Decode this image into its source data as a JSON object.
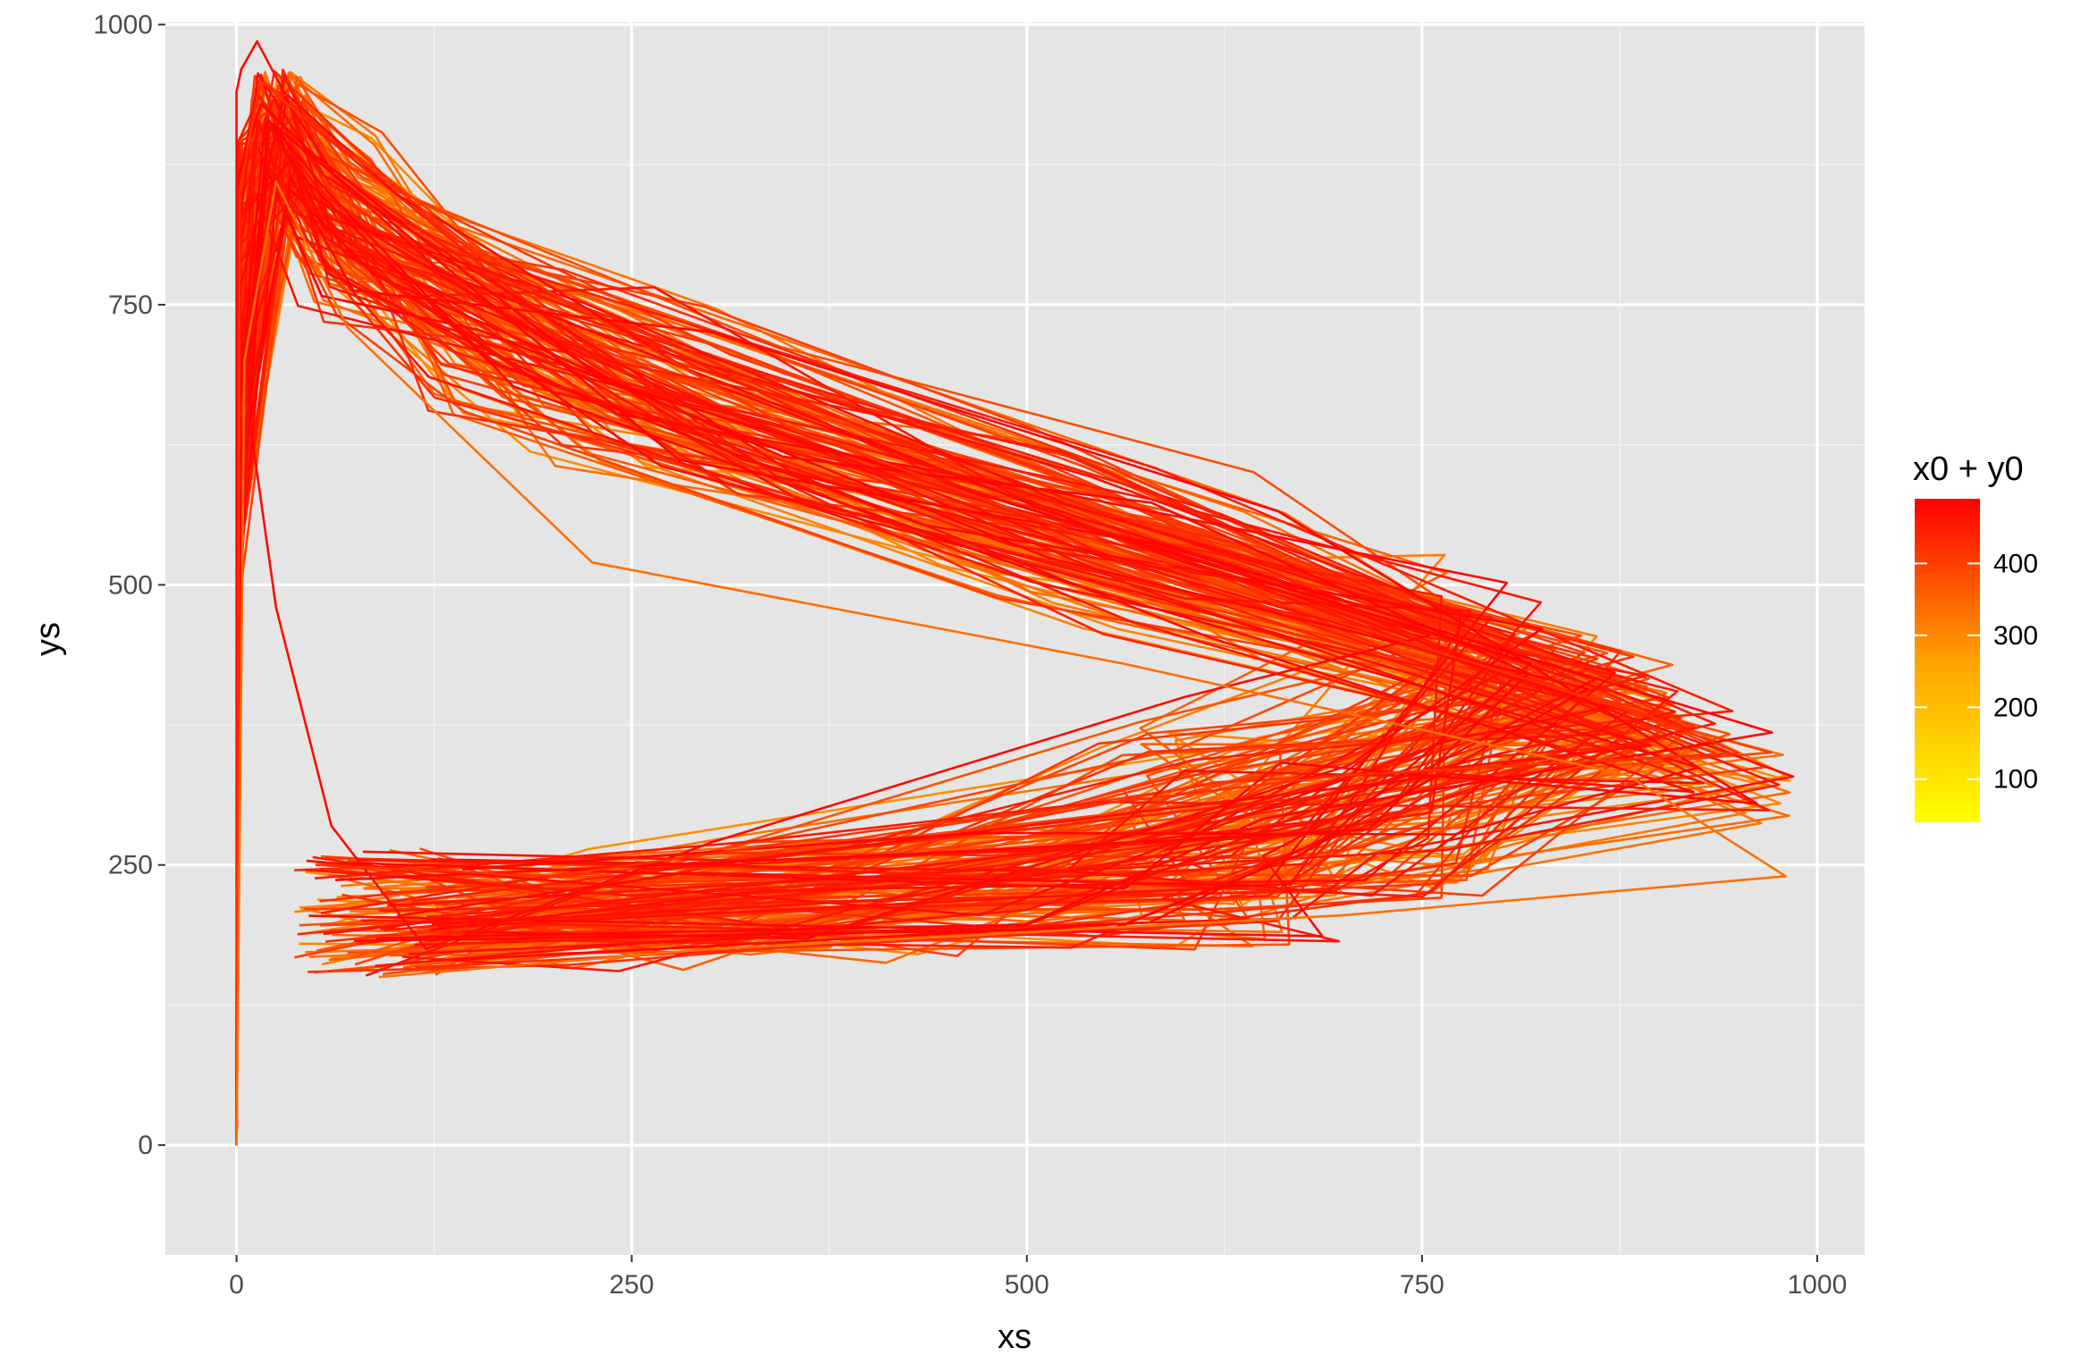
{
  "chart_data": {
    "type": "line",
    "title": "",
    "xlabel": "xs",
    "ylabel": "ys",
    "xlim": [
      -45,
      1030
    ],
    "ylim": [
      -98,
      1002
    ],
    "x_ticks": [
      0,
      250,
      500,
      750,
      1000
    ],
    "x_tick_labels": [
      "0",
      "250",
      "500",
      "750",
      "1000"
    ],
    "y_ticks": [
      0,
      250,
      500,
      750,
      1000
    ],
    "y_tick_labels": [
      "0",
      "250",
      "500",
      "750",
      "1000"
    ],
    "grid": true,
    "background": "#e5e5e5",
    "legend": {
      "title": "x0 + y0",
      "placement": "right",
      "type": "colorbar",
      "range": [
        40,
        490
      ],
      "ticks": [
        100,
        200,
        300,
        400
      ],
      "tick_labels": [
        "100",
        "200",
        "300",
        "400"
      ],
      "color_low": "#ffff00",
      "color_high": "#ff0000"
    },
    "series_note_count": 160,
    "sample_series": [
      {
        "color_value": 470,
        "x": [
          0,
          0,
          3,
          13,
          30,
          100,
          300,
          600,
          755,
          600,
          300,
          120,
          60,
          25,
          3,
          0
        ],
        "y": [
          0,
          940,
          960,
          985,
          940,
          850,
          680,
          520,
          455,
          400,
          270,
          175,
          285,
          480,
          700,
          880
        ]
      },
      {
        "color_value": 380,
        "x": [
          0,
          2,
          15,
          40,
          150,
          350,
          620,
          900,
          950,
          700,
          400,
          200,
          50
        ],
        "y": [
          0,
          850,
          950,
          920,
          800,
          640,
          500,
          380,
          350,
          330,
          280,
          240,
          250
        ]
      },
      {
        "color_value": 250,
        "x": [
          0,
          5,
          25,
          70,
          225,
          560,
          880,
          980,
          700,
          300,
          90
        ],
        "y": [
          0,
          700,
          860,
          730,
          520,
          430,
          330,
          240,
          205,
          175,
          150
        ]
      }
    ]
  }
}
